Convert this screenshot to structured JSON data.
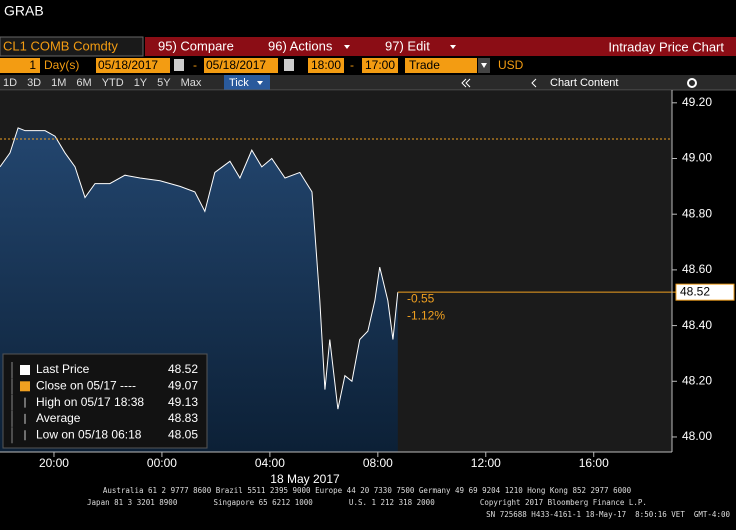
{
  "ui": {
    "title": "GRAB",
    "security": "CL1 COMB Comdty",
    "compare": "95) Compare",
    "actions": "96) Actions",
    "edit": "97) Edit",
    "panel_title": "Intraday Price Chart",
    "period_count": "1",
    "period_unit": "Day(s)",
    "start_date": "05/18/2017",
    "end_date": "05/18/2017",
    "range_separator": "-",
    "start_time": "18:00",
    "end_time": "17:00",
    "field": "Trade",
    "currency": "USD",
    "ranges": [
      "1D",
      "3D",
      "1M",
      "6M",
      "YTD",
      "1Y",
      "5Y",
      "Max"
    ],
    "tick_mode": "Tick",
    "chart_content": "Chart Content"
  },
  "chart_data": {
    "type": "area",
    "x": [
      0,
      0.37,
      0.67,
      0.93,
      1.3,
      1.67,
      2.04,
      2.41,
      2.78,
      3.15,
      3.52,
      4.07,
      4.63,
      5.19,
      5.93,
      6.67,
      7.22,
      7.59,
      7.96,
      8.52,
      8.89,
      9.33,
      9.7,
      10.07,
      10.56,
      11.11,
      11.56,
      11.7,
      11.85,
      12.04,
      12.22,
      12.52,
      12.78,
      13.04,
      13.33,
      13.63,
      13.89,
      14.07,
      14.37,
      14.56,
      14.74
    ],
    "series": [
      {
        "name": "Last Price",
        "color": "#ffffff",
        "values": [
          48.97,
          49.02,
          49.11,
          49.1,
          49.1,
          49.1,
          49.08,
          49.02,
          48.97,
          48.86,
          48.91,
          48.91,
          48.94,
          48.93,
          48.92,
          48.9,
          48.88,
          48.81,
          48.95,
          48.99,
          48.93,
          49.03,
          48.97,
          49.0,
          48.93,
          48.95,
          48.88,
          48.69,
          48.49,
          48.17,
          48.35,
          48.1,
          48.22,
          48.2,
          48.35,
          48.38,
          48.49,
          48.61,
          48.49,
          48.35,
          48.52
        ]
      }
    ],
    "xlim": [
      0,
      24.9
    ],
    "xticks": [
      {
        "value": 2,
        "label": "20:00"
      },
      {
        "value": 6,
        "label": "00:00"
      },
      {
        "value": 10,
        "label": "04:00"
      },
      {
        "value": 14,
        "label": "08:00"
      },
      {
        "value": 18,
        "label": "12:00"
      },
      {
        "value": 22,
        "label": "16:00"
      }
    ],
    "x_label": "18 May 2017",
    "ylim": [
      47.946,
      49.246
    ],
    "yticks": [
      {
        "value": 48.0,
        "label": "48.00"
      },
      {
        "value": 48.2,
        "label": "48.20"
      },
      {
        "value": 48.4,
        "label": "48.40"
      },
      {
        "value": 48.6,
        "label": "48.60"
      },
      {
        "value": 48.8,
        "label": "48.80"
      },
      {
        "value": 49.0,
        "label": "49.00"
      },
      {
        "value": 49.2,
        "label": "49.20"
      }
    ],
    "grid": false,
    "close_color": "#f0a020",
    "legend": [
      {
        "label": "Last Price",
        "value": 48.52
      },
      {
        "label": "Close on 05/17 ----",
        "value": 49.07
      },
      {
        "label": "High on 05/17 18:38",
        "value": 49.13
      },
      {
        "label": "Average",
        "value": 48.83
      },
      {
        "label": "Low on 05/18 06:18",
        "value": 48.05
      }
    ],
    "change": "-0.55",
    "change_pct": "-1.12%"
  },
  "footer": [
    "Australia 61 2 9777 8600 Brazil 5511 2395 9000 Europe 44 20 7330 7500 Germany 49 69 9204 1210 Hong Kong 852 2977 6000",
    "Japan 81 3 3201 8900        Singapore 65 6212 1000        U.S. 1 212 318 2000          Copyright 2017 Bloomberg Finance L.P.",
    "SN 725688 H433-4161-1 18-May-17  8:50:16 VET  GMT-4:00"
  ]
}
